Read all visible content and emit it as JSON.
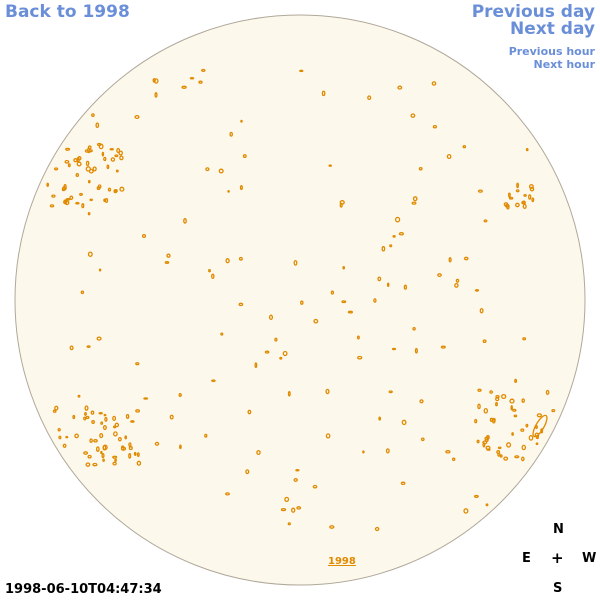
{
  "nav": {
    "back_label": "Back to 1998",
    "previous_day_label": "Previous day",
    "next_day_label": "Next day",
    "previous_hour_label": "Previous hour",
    "next_hour_label": "Next hour"
  },
  "timestamp": "1998-06-10T04:47:34",
  "disk": {
    "year_label": "1998",
    "background_color": "#fdf8ec",
    "contour_color": "#e08a00",
    "limb_color": "#b0a89a"
  },
  "compass": {
    "north": "N",
    "east": "E",
    "center": "+",
    "west": "W",
    "south": "S"
  }
}
